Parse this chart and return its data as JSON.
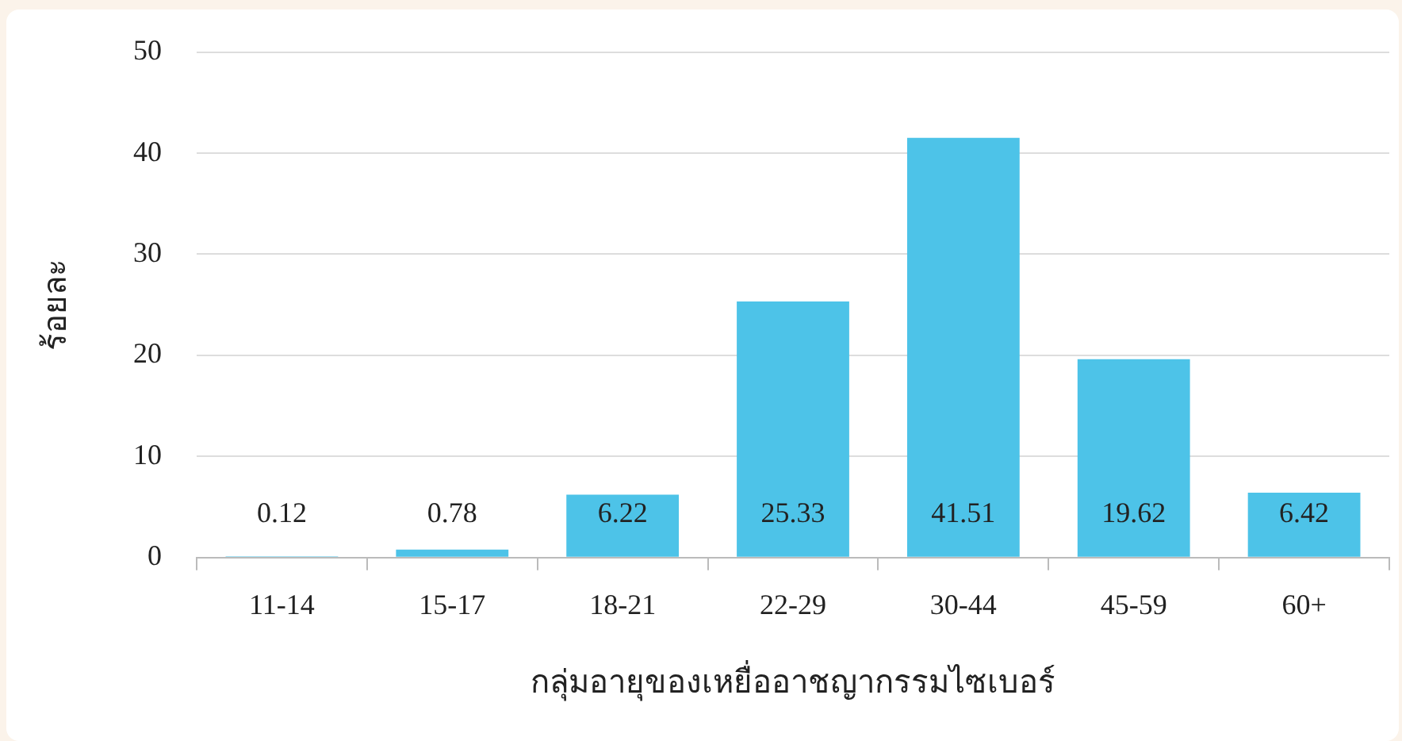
{
  "chart_data": {
    "type": "bar",
    "xlabel": "กลุ่มอายุของเหยื่ออาชญากรรมไซเบอร์",
    "ylabel": "ร้อยละ",
    "categories": [
      "11-14",
      "15-17",
      "18-21",
      "22-29",
      "30-44",
      "45-59",
      "60+"
    ],
    "values": [
      0.12,
      0.78,
      6.22,
      25.33,
      41.51,
      19.62,
      6.42
    ],
    "color": "#4dc3e8",
    "ylim": [
      0,
      50
    ],
    "yticks": [
      0,
      10,
      20,
      30,
      40,
      50
    ],
    "grid": "y",
    "data_labels": true,
    "legend": false
  }
}
